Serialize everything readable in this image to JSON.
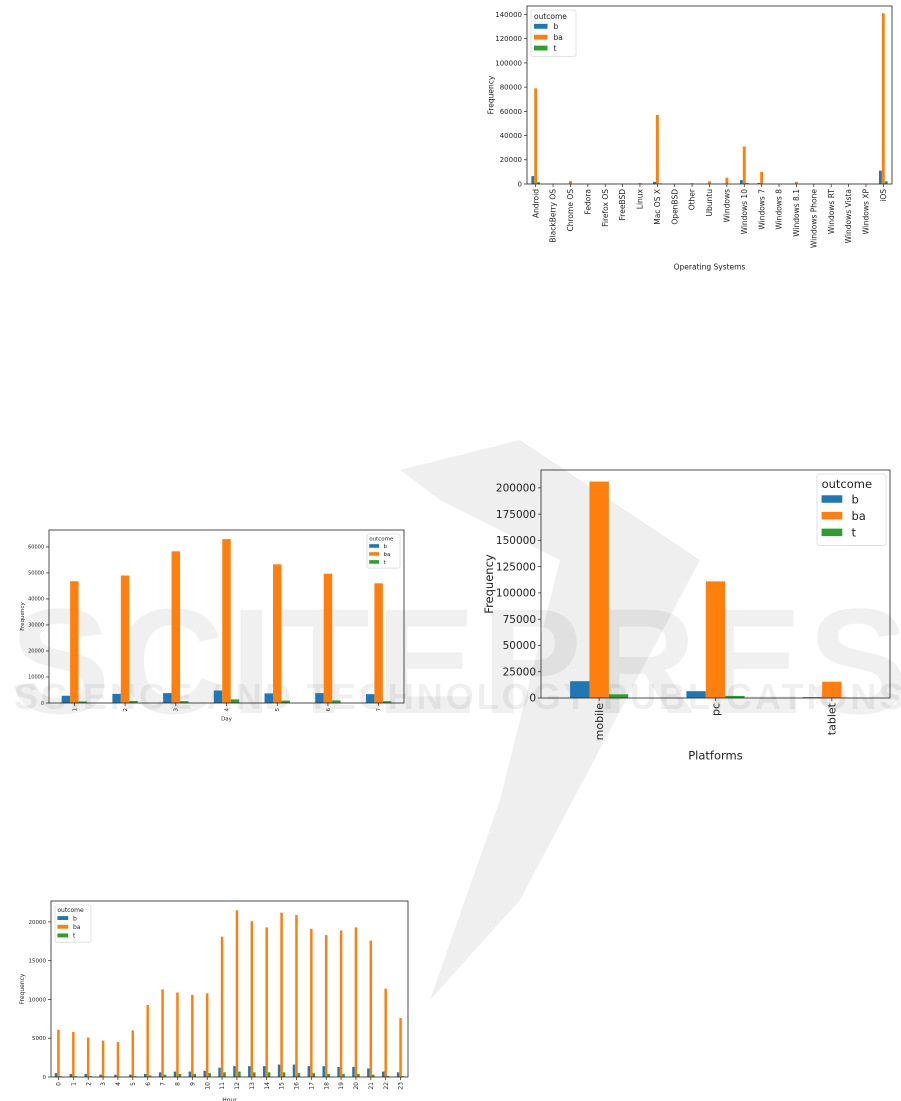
{
  "watermark": {
    "main": "SCITEPRESS",
    "sub": "SCIENCE AND TECHNOLOGY PUBLICATIONS"
  },
  "colors": {
    "b": "#1f77b4",
    "ba": "#ff7f0e",
    "t": "#2ca02c"
  },
  "chart_data": [
    {
      "type": "bar",
      "xlabel": "Operating Systems",
      "ylabel": "Frequency",
      "legend_title": "outcome",
      "legend": "top-left",
      "ylim": [
        0,
        147000
      ],
      "yticks": [
        0,
        20000,
        40000,
        60000,
        80000,
        100000,
        120000,
        140000
      ],
      "categories": [
        "Android",
        "BlackBerry OS",
        "Chrome OS",
        "Fedora",
        "Firefox OS",
        "FreeBSD",
        "Linux",
        "Mac OS X",
        "OpenBSD",
        "Other",
        "Ubuntu",
        "Windows",
        "Windows 10",
        "Windows 7",
        "Windows 8",
        "Windows 8.1",
        "Windows Phone",
        "Windows RT",
        "Windows Vista",
        "Windows XP",
        "iOS"
      ],
      "series": [
        {
          "name": "b",
          "values": [
            6500,
            50,
            200,
            20,
            20,
            20,
            150,
            1800,
            20,
            100,
            200,
            400,
            3200,
            800,
            50,
            200,
            20,
            20,
            20,
            20,
            11000
          ]
        },
        {
          "name": "ba",
          "values": [
            79000,
            300,
            2500,
            100,
            100,
            100,
            800,
            57000,
            100,
            700,
            2200,
            5200,
            31000,
            10000,
            300,
            1800,
            100,
            100,
            100,
            100,
            141000
          ]
        },
        {
          "name": "t",
          "values": [
            1500,
            10,
            50,
            5,
            5,
            5,
            30,
            500,
            5,
            30,
            50,
            100,
            800,
            200,
            10,
            50,
            5,
            5,
            5,
            5,
            2200
          ]
        }
      ]
    },
    {
      "type": "bar",
      "xlabel": "Day",
      "ylabel": "Frequency",
      "legend_title": "outcome",
      "legend": "top-right",
      "ylim": [
        0,
        66500
      ],
      "yticks": [
        0,
        10000,
        20000,
        30000,
        40000,
        50000,
        60000
      ],
      "categories": [
        "1",
        "2",
        "3",
        "4",
        "5",
        "6",
        "7"
      ],
      "series": [
        {
          "name": "b",
          "values": [
            2800,
            3500,
            3800,
            4800,
            3700,
            3800,
            3400
          ]
        },
        {
          "name": "ba",
          "values": [
            46800,
            49000,
            58300,
            63000,
            53300,
            49700,
            46000
          ]
        },
        {
          "name": "t",
          "values": [
            600,
            800,
            700,
            1400,
            900,
            1000,
            700
          ]
        }
      ]
    },
    {
      "type": "bar",
      "xlabel": "Platforms",
      "ylabel": "Frequency",
      "legend_title": "outcome",
      "legend": "top-right",
      "ylim": [
        0,
        217000
      ],
      "yticks": [
        0,
        25000,
        50000,
        75000,
        100000,
        125000,
        150000,
        175000,
        200000
      ],
      "categories": [
        "mobile",
        "pc",
        "tablet"
      ],
      "series": [
        {
          "name": "b",
          "values": [
            16000,
            6500,
            800
          ]
        },
        {
          "name": "ba",
          "values": [
            206000,
            111000,
            15500
          ]
        },
        {
          "name": "t",
          "values": [
            3500,
            2000,
            300
          ]
        }
      ]
    },
    {
      "type": "bar",
      "xlabel": "Hour",
      "ylabel": "Frequency",
      "legend_title": "outcome",
      "legend": "top-left",
      "ylim": [
        0,
        22700
      ],
      "yticks": [
        0,
        5000,
        10000,
        15000,
        20000
      ],
      "categories": [
        "0",
        "1",
        "2",
        "3",
        "4",
        "5",
        "6",
        "7",
        "8",
        "9",
        "10",
        "11",
        "12",
        "13",
        "14",
        "15",
        "16",
        "17",
        "18",
        "19",
        "20",
        "21",
        "22",
        "23"
      ],
      "series": [
        {
          "name": "b",
          "values": [
            500,
            400,
            400,
            300,
            300,
            300,
            400,
            600,
            700,
            700,
            800,
            1200,
            1400,
            1400,
            1400,
            1600,
            1600,
            1400,
            1400,
            1300,
            1300,
            1100,
            700,
            600
          ]
        },
        {
          "name": "ba",
          "values": [
            6100,
            5800,
            5100,
            4700,
            4500,
            6000,
            9300,
            11300,
            10900,
            10600,
            10800,
            18100,
            21500,
            20100,
            19300,
            21200,
            20900,
            19100,
            18300,
            18900,
            19300,
            17600,
            11400,
            7600
          ]
        },
        {
          "name": "t",
          "values": [
            100,
            100,
            100,
            50,
            50,
            100,
            200,
            300,
            400,
            400,
            500,
            600,
            700,
            600,
            600,
            600,
            500,
            500,
            400,
            400,
            400,
            300,
            150,
            100
          ]
        }
      ]
    }
  ]
}
